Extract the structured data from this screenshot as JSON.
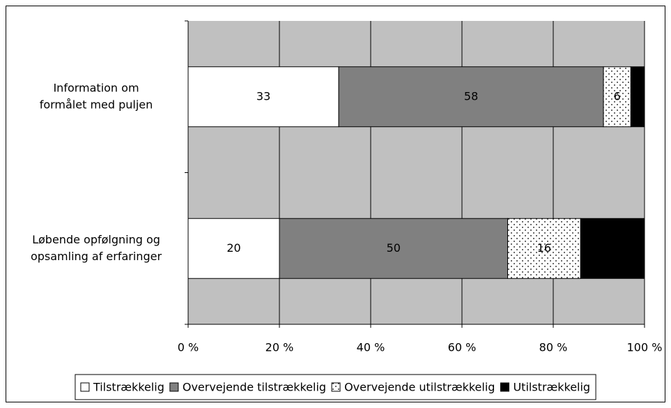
{
  "chart_data": {
    "type": "stacked_bar_horizontal",
    "categories": [
      [
        "Information om",
        "formålet med puljen"
      ],
      [
        "Løbende opfølgning og",
        "opsamling af erfaringer"
      ]
    ],
    "series": [
      {
        "name": "Tilstrækkelig",
        "color": "#ffffff",
        "values": [
          33,
          20
        ]
      },
      {
        "name": "Overvejende tilstrækkelig",
        "color": "#808080",
        "values": [
          58,
          50
        ]
      },
      {
        "name": "Overvejende utilstrækkelig",
        "color": "#ffffff",
        "pattern": "dots",
        "values": [
          6,
          16
        ]
      },
      {
        "name": "Utilstrækkelig",
        "color": "#000000",
        "values": [
          3,
          14
        ]
      }
    ],
    "xlim": [
      0,
      100
    ],
    "xticks": [
      {
        "value": 0,
        "label": "0 %"
      },
      {
        "value": 20,
        "label": "20 %"
      },
      {
        "value": 40,
        "label": "40 %"
      },
      {
        "value": 60,
        "label": "60 %"
      },
      {
        "value": 80,
        "label": "80 %"
      },
      {
        "value": 100,
        "label": "100 %"
      }
    ],
    "grid": true,
    "plot_background": "#c0c0c0",
    "legend": "bottom"
  }
}
